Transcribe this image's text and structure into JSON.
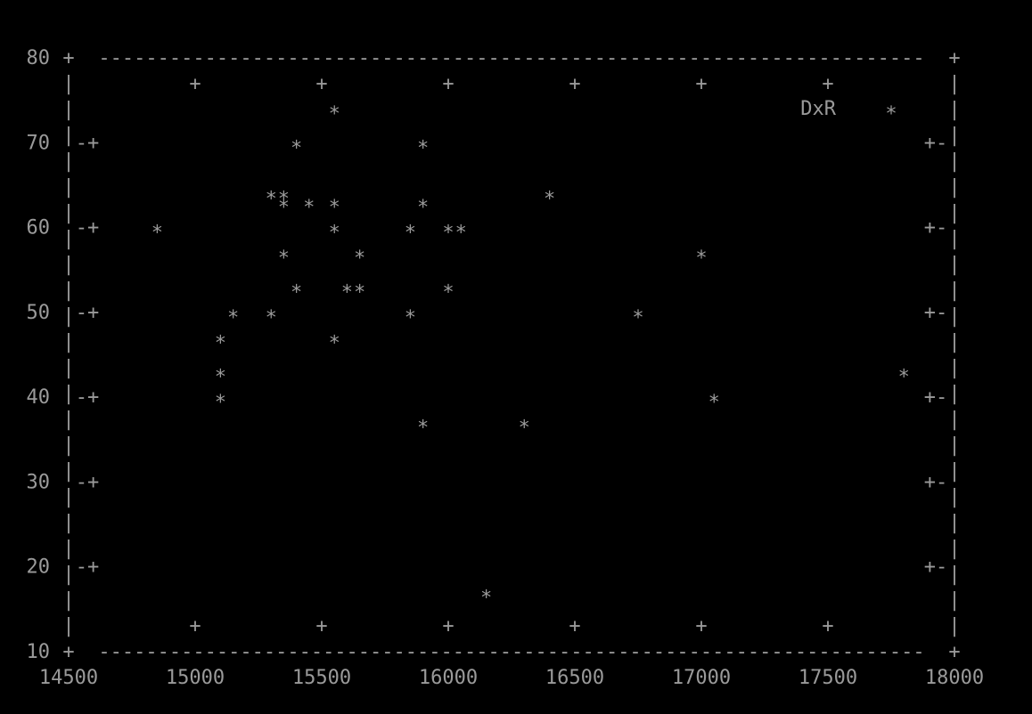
{
  "chart_data": {
    "type": "scatter",
    "title": "",
    "xlabel": "",
    "ylabel": "",
    "xlim": [
      14500,
      18000
    ],
    "ylim": [
      10,
      80
    ],
    "x_ticks": [
      "14500",
      "15000",
      "15500",
      "16000",
      "16500",
      "17000",
      "17500",
      "18000"
    ],
    "y_ticks": [
      "10",
      "20",
      "30",
      "40",
      "50",
      "60",
      "70",
      "80"
    ],
    "marker": "*",
    "color": "#9a9a9a",
    "background": "#000000",
    "series": [
      {
        "name": "DxR",
        "points": [
          [
            15550,
            74
          ],
          [
            17750,
            74
          ],
          [
            15400,
            70
          ],
          [
            15900,
            70
          ],
          [
            15300,
            64
          ],
          [
            15350,
            64
          ],
          [
            16400,
            64
          ],
          [
            15350,
            63
          ],
          [
            15450,
            63
          ],
          [
            15550,
            63
          ],
          [
            15900,
            63
          ],
          [
            14850,
            60
          ],
          [
            15550,
            60
          ],
          [
            15850,
            60
          ],
          [
            16000,
            60
          ],
          [
            16050,
            60
          ],
          [
            15350,
            57
          ],
          [
            15650,
            57
          ],
          [
            17000,
            57
          ],
          [
            15400,
            53
          ],
          [
            15600,
            53
          ],
          [
            15650,
            53
          ],
          [
            16000,
            53
          ],
          [
            15150,
            50
          ],
          [
            15300,
            50
          ],
          [
            15850,
            50
          ],
          [
            16750,
            50
          ],
          [
            15100,
            47
          ],
          [
            15550,
            47
          ],
          [
            15100,
            43
          ],
          [
            17800,
            43
          ],
          [
            15100,
            40
          ],
          [
            17050,
            40
          ],
          [
            15900,
            37
          ],
          [
            16300,
            37
          ],
          [
            16150,
            17
          ]
        ]
      }
    ]
  }
}
